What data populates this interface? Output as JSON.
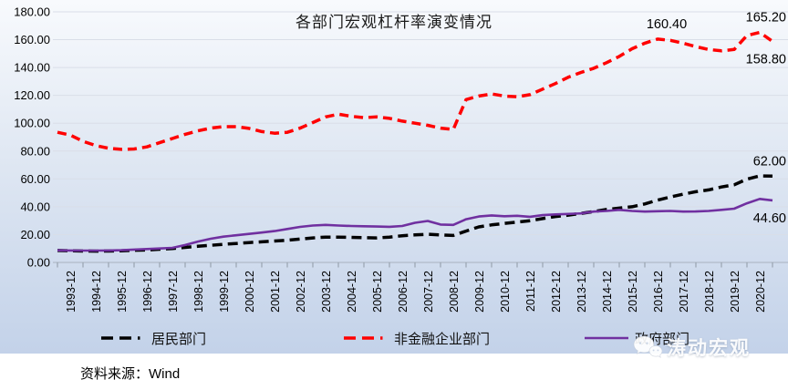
{
  "chart_data": {
    "type": "line",
    "title": "各部门宏观杠杆率演变情况",
    "grid": true,
    "legend_position": "bottom",
    "x": [
      "1993-06",
      "1993-12",
      "1994-06",
      "1994-12",
      "1995-06",
      "1995-12",
      "1996-06",
      "1996-12",
      "1997-06",
      "1997-12",
      "1998-06",
      "1998-12",
      "1999-06",
      "1999-12",
      "2000-06",
      "2000-12",
      "2001-06",
      "2001-12",
      "2002-06",
      "2002-12",
      "2003-06",
      "2003-12",
      "2004-06",
      "2004-12",
      "2005-06",
      "2005-12",
      "2006-06",
      "2006-12",
      "2007-06",
      "2007-12",
      "2008-06",
      "2008-12",
      "2009-06",
      "2009-12",
      "2010-06",
      "2010-12",
      "2011-06",
      "2011-12",
      "2012-06",
      "2012-12",
      "2013-06",
      "2013-12",
      "2014-06",
      "2014-12",
      "2015-06",
      "2015-12",
      "2016-06",
      "2016-12",
      "2017-06",
      "2017-12",
      "2018-06",
      "2018-12",
      "2019-06",
      "2019-12",
      "2020-06",
      "2020-12",
      "2021-06"
    ],
    "x_tick_labels": [
      "1993-12",
      "1994-12",
      "1995-12",
      "1996-12",
      "1997-12",
      "1998-12",
      "1999-12",
      "2000-12",
      "2001-12",
      "2002-12",
      "2003-12",
      "2004-12",
      "2005-12",
      "2006-12",
      "2007-12",
      "2008-12",
      "2009-12",
      "2010-12",
      "2011-12",
      "2012-12",
      "2013-12",
      "2014-12",
      "2015-12",
      "2016-12",
      "2017-12",
      "2018-12",
      "2019-12",
      "2020-12"
    ],
    "y_axis": {
      "min": 0,
      "max": 180,
      "step": 20,
      "tick_labels": [
        "0.00",
        "20.00",
        "40.00",
        "60.00",
        "80.00",
        "100.00",
        "120.00",
        "140.00",
        "160.00",
        "180.00"
      ]
    },
    "series": [
      {
        "id": "households",
        "name": "居民部门",
        "color": "#000000",
        "style": "long-dash",
        "values": [
          8.6,
          8.4,
          8.2,
          8.1,
          8.2,
          8.4,
          8.7,
          9.0,
          9.5,
          10.0,
          10.8,
          11.6,
          12.3,
          13.0,
          13.6,
          14.3,
          14.8,
          15.4,
          16.0,
          16.8,
          17.6,
          18.2,
          18.2,
          18.0,
          17.8,
          17.6,
          18.2,
          19.2,
          19.8,
          20.2,
          19.8,
          19.4,
          22.5,
          25.5,
          27.0,
          28.0,
          29.0,
          30.0,
          31.5,
          33.0,
          34.0,
          35.2,
          36.5,
          38.0,
          39.0,
          40.0,
          42.0,
          44.8,
          47.0,
          49.0,
          50.8,
          52.1,
          54.2,
          55.8,
          59.8,
          62.2,
          62.0
        ]
      },
      {
        "id": "non_financial_corporates",
        "name": "非金融企业部门",
        "color": "#FF0000",
        "style": "dash",
        "values": [
          93.5,
          91.5,
          87.0,
          84.0,
          82.0,
          81.2,
          81.5,
          83.0,
          86.0,
          89.0,
          92.0,
          94.5,
          96.5,
          97.5,
          97.5,
          96.3,
          94.0,
          92.8,
          93.5,
          96.5,
          100.5,
          104.5,
          106.5,
          105.0,
          104.0,
          104.5,
          103.5,
          101.5,
          100.0,
          98.5,
          96.5,
          95.5,
          117.0,
          119.5,
          121.0,
          119.5,
          119.0,
          120.5,
          124.5,
          128.5,
          133.0,
          136.5,
          139.5,
          143.5,
          148.0,
          153.5,
          157.5,
          160.4,
          159.5,
          157.5,
          155.0,
          153.0,
          152.0,
          153.0,
          163.0,
          165.2,
          158.8
        ]
      },
      {
        "id": "government",
        "name": "政府部门",
        "color": "#7030A0",
        "style": "solid",
        "values": [
          8.7,
          8.6,
          8.5,
          8.5,
          8.6,
          8.8,
          9.2,
          9.6,
          10.0,
          10.5,
          12.5,
          15.0,
          17.0,
          18.5,
          19.5,
          20.5,
          21.5,
          22.5,
          24.0,
          25.5,
          26.5,
          27.0,
          26.5,
          26.2,
          26.0,
          25.8,
          25.6,
          26.2,
          28.5,
          29.8,
          27.2,
          27.0,
          31.0,
          33.0,
          33.8,
          33.2,
          33.5,
          32.8,
          34.0,
          34.5,
          34.8,
          35.2,
          36.5,
          37.0,
          37.8,
          37.0,
          36.5,
          36.8,
          37.0,
          36.5,
          36.6,
          37.0,
          37.8,
          38.6,
          42.5,
          45.6,
          44.6
        ]
      }
    ],
    "annotations": [
      {
        "text": "160.40",
        "series": "non_financial_corporates",
        "x": "2016-12",
        "value": 160.4,
        "placement": "above"
      },
      {
        "text": "165.20",
        "series": "non_financial_corporates",
        "x": "2020-12",
        "value": 165.2,
        "placement": "above"
      },
      {
        "text": "158.80",
        "series": "non_financial_corporates",
        "x": "2021-06",
        "value": 158.8,
        "placement": "below"
      },
      {
        "text": "62.00",
        "series": "households",
        "x": "2021-06",
        "value": 62.0,
        "placement": "above"
      },
      {
        "text": "44.60",
        "series": "government",
        "x": "2021-06",
        "value": 44.6,
        "placement": "below"
      }
    ]
  },
  "legend": {
    "items": [
      {
        "label": "居民部门"
      },
      {
        "label": "非金融企业部门"
      },
      {
        "label": "政府部门"
      }
    ]
  },
  "source_note": "资料来源：Wind",
  "watermark": {
    "text": "涛动宏观",
    "icon": "wechat-chat-bubbles-icon"
  }
}
